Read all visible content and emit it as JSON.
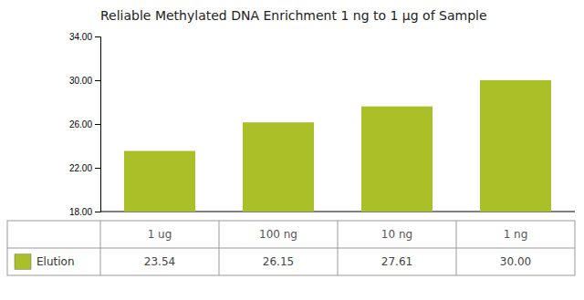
{
  "chart_data": {
    "type": "bar",
    "title": "Reliable Methylated DNA Enrichment 1 ng to 1 μg of Sample",
    "categories": [
      "1 ug",
      "100 ng",
      "10 ng",
      "1 ng"
    ],
    "series": [
      {
        "name": "Elution",
        "color": "#aabf28",
        "values": [
          23.54,
          26.15,
          27.61,
          30.0
        ],
        "value_labels": [
          "23.54",
          "26.15",
          "27.61",
          "30.00"
        ]
      }
    ],
    "ylim": [
      18.0,
      34.0
    ],
    "yticks": [
      {
        "value": 18.0,
        "label": "18.00"
      },
      {
        "value": 22.0,
        "label": "22.00"
      },
      {
        "value": 26.0,
        "label": "26.00"
      },
      {
        "value": 30.0,
        "label": "30.00"
      },
      {
        "value": 34.0,
        "label": "34.00"
      }
    ],
    "grid": false,
    "legend": "bottom",
    "data_labels": true,
    "tick_labels": "y"
  }
}
